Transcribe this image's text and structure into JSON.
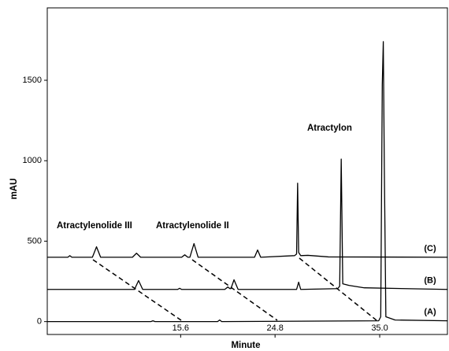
{
  "chart_data": {
    "type": "line",
    "xlabel": "Minute",
    "ylabel": "mAU",
    "annotations": [
      "Atractylenolide III",
      "Atractylenolide II",
      "Atractylon"
    ],
    "xlim": [
      2.6,
      41.6
    ],
    "xticks": [
      15.6,
      24.8,
      {
        "value": 35,
        "label": "35.0"
      }
    ],
    "ylim": [
      -80,
      1950
    ],
    "yticks": [
      0,
      500,
      1000,
      1500
    ],
    "series": [
      {
        "name": "(A)",
        "color": "#000000",
        "x": [
          2.6,
          12.7,
          12.9,
          13.1,
          19.2,
          19.4,
          19.6,
          34.9,
          35.1,
          35.25,
          35.35,
          35.45,
          35.6,
          36.5,
          41.6
        ],
        "values": [
          0,
          0,
          5,
          0,
          0,
          10,
          0,
          5,
          30,
          1470,
          1740,
          960,
          30,
          10,
          5
        ]
      },
      {
        "name": "(B)",
        "color": "#000000",
        "x": [
          2.6,
          11.1,
          11.5,
          11.9,
          15.3,
          15.5,
          15.7,
          19.9,
          20.2,
          20.4,
          20.5,
          20.8,
          21.2,
          26.9,
          27.1,
          27.3,
          30.9,
          31.1,
          31.25,
          31.4,
          32.0,
          33.5,
          41.6
        ],
        "values": [
          200,
          200,
          255,
          200,
          200,
          207,
          200,
          200,
          215,
          205,
          205,
          260,
          200,
          200,
          245,
          200,
          205,
          220,
          1010,
          235,
          225,
          210,
          200
        ]
      },
      {
        "name": "(C)",
        "color": "#000000",
        "x": [
          2.6,
          4.6,
          4.8,
          5.0,
          7.0,
          7.4,
          7.8,
          10.9,
          11.3,
          11.7,
          15.7,
          16.0,
          16.3,
          16.5,
          16.9,
          17.3,
          22.8,
          23.1,
          23.4,
          26.7,
          26.9,
          27.0,
          27.1,
          27.3,
          28.0,
          30.0,
          41.6
        ],
        "values": [
          400,
          400,
          410,
          400,
          400,
          465,
          400,
          400,
          425,
          400,
          400,
          415,
          400,
          400,
          485,
          400,
          400,
          445,
          400,
          410,
          420,
          860,
          430,
          410,
          412,
          402,
          400
        ]
      }
    ]
  }
}
